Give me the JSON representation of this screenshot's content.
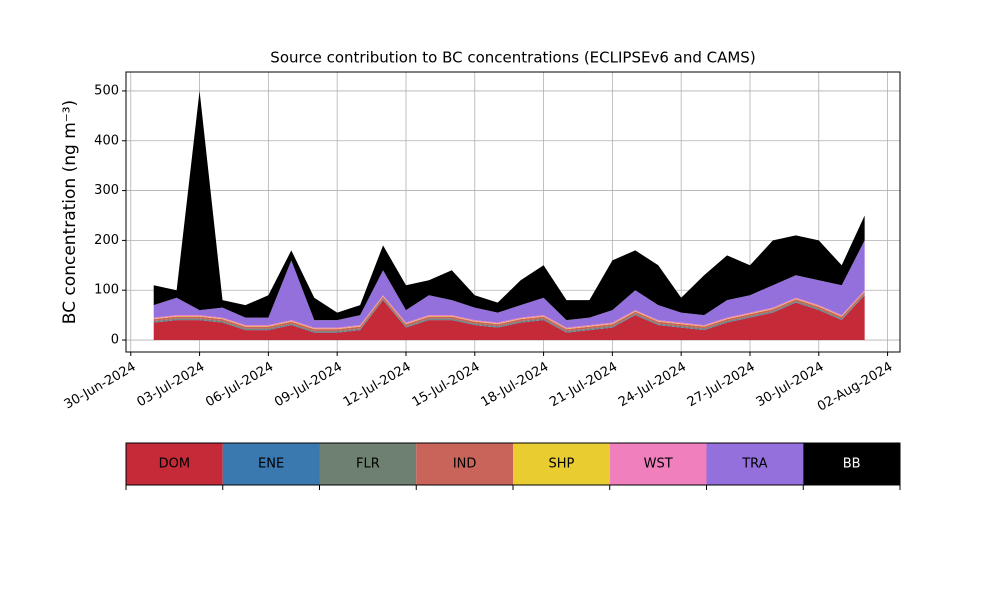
{
  "chart_data": {
    "type": "stacked_area",
    "title": "Source contribution to BC concentrations (ECLIPSEv6 and CAMS)",
    "y_label": "BC concentration (ng m⁻³)",
    "x": [
      "2024-07-01",
      "2024-07-02",
      "2024-07-03",
      "2024-07-04",
      "2024-07-05",
      "2024-07-06",
      "2024-07-07",
      "2024-07-08",
      "2024-07-09",
      "2024-07-10",
      "2024-07-11",
      "2024-07-12",
      "2024-07-13",
      "2024-07-14",
      "2024-07-15",
      "2024-07-16",
      "2024-07-17",
      "2024-07-18",
      "2024-07-19",
      "2024-07-20",
      "2024-07-21",
      "2024-07-22",
      "2024-07-23",
      "2024-07-24",
      "2024-07-25",
      "2024-07-26",
      "2024-07-27",
      "2024-07-28",
      "2024-07-29",
      "2024-07-30",
      "2024-07-31",
      "2024-08-01"
    ],
    "series": [
      {
        "name": "DOM",
        "color": "#c42a38",
        "values": [
          35,
          40,
          40,
          35,
          20,
          20,
          30,
          15,
          15,
          20,
          80,
          25,
          40,
          40,
          30,
          25,
          35,
          40,
          15,
          20,
          25,
          50,
          30,
          25,
          20,
          35,
          45,
          55,
          75,
          60,
          40,
          90
        ]
      },
      {
        "name": "ENE",
        "color": "#3a78b0",
        "values": [
          1,
          1,
          1,
          1,
          1,
          1,
          1,
          1,
          1,
          1,
          1,
          1,
          1,
          1,
          1,
          1,
          1,
          1,
          1,
          1,
          1,
          1,
          1,
          1,
          1,
          1,
          1,
          1,
          1,
          1,
          1,
          1
        ]
      },
      {
        "name": "FLR",
        "color": "#6e8070",
        "values": [
          2,
          2,
          2,
          2,
          2,
          2,
          2,
          2,
          2,
          2,
          2,
          2,
          2,
          2,
          2,
          2,
          2,
          2,
          2,
          2,
          2,
          2,
          2,
          2,
          2,
          2,
          2,
          2,
          2,
          2,
          2,
          2
        ]
      },
      {
        "name": "IND",
        "color": "#c8645a",
        "values": [
          4,
          4,
          4,
          4,
          4,
          4,
          4,
          4,
          4,
          4,
          4,
          4,
          4,
          4,
          4,
          4,
          4,
          4,
          4,
          4,
          4,
          4,
          4,
          4,
          4,
          4,
          4,
          4,
          4,
          4,
          4,
          4
        ]
      },
      {
        "name": "SHP",
        "color": "#e8cc30",
        "values": [
          1,
          1,
          1,
          1,
          1,
          1,
          1,
          1,
          1,
          1,
          1,
          1,
          1,
          1,
          1,
          1,
          1,
          1,
          1,
          1,
          1,
          1,
          1,
          1,
          1,
          1,
          1,
          1,
          1,
          1,
          1,
          1
        ]
      },
      {
        "name": "WST",
        "color": "#f07fbe",
        "values": [
          2,
          2,
          2,
          2,
          2,
          2,
          2,
          2,
          2,
          2,
          2,
          2,
          2,
          2,
          2,
          2,
          2,
          2,
          2,
          2,
          2,
          2,
          2,
          2,
          2,
          2,
          2,
          2,
          2,
          2,
          2,
          2
        ]
      },
      {
        "name": "TRA",
        "color": "#9370db",
        "values": [
          25,
          35,
          10,
          20,
          15,
          15,
          120,
          15,
          15,
          20,
          50,
          25,
          40,
          30,
          25,
          20,
          25,
          35,
          15,
          15,
          25,
          40,
          30,
          20,
          20,
          35,
          35,
          45,
          45,
          50,
          60,
          100
        ]
      },
      {
        "name": "BB",
        "color": "#000000",
        "values": [
          40,
          15,
          440,
          15,
          25,
          45,
          20,
          45,
          15,
          20,
          50,
          50,
          30,
          60,
          25,
          20,
          50,
          65,
          40,
          35,
          100,
          80,
          80,
          30,
          80,
          90,
          60,
          90,
          80,
          80,
          40,
          50
        ]
      }
    ],
    "xlim": [
      "2024-06-29T19:00",
      "2024-08-02T13:00"
    ],
    "xticks": [
      {
        "value": "2024-06-30",
        "label": "30-Jun-2024"
      },
      {
        "value": "2024-07-03",
        "label": "03-Jul-2024"
      },
      {
        "value": "2024-07-06",
        "label": "06-Jul-2024"
      },
      {
        "value": "2024-07-09",
        "label": "09-Jul-2024"
      },
      {
        "value": "2024-07-12",
        "label": "12-Jul-2024"
      },
      {
        "value": "2024-07-15",
        "label": "15-Jul-2024"
      },
      {
        "value": "2024-07-18",
        "label": "18-Jul-2024"
      },
      {
        "value": "2024-07-21",
        "label": "21-Jul-2024"
      },
      {
        "value": "2024-07-24",
        "label": "24-Jul-2024"
      },
      {
        "value": "2024-07-27",
        "label": "27-Jul-2024"
      },
      {
        "value": "2024-07-30",
        "label": "30-Jul-2024"
      },
      {
        "value": "2024-08-02",
        "label": "02-Aug-2024"
      }
    ],
    "ylim": [
      -24,
      538
    ],
    "yticks": [
      0,
      100,
      200,
      300,
      400,
      500
    ],
    "grid": true
  }
}
